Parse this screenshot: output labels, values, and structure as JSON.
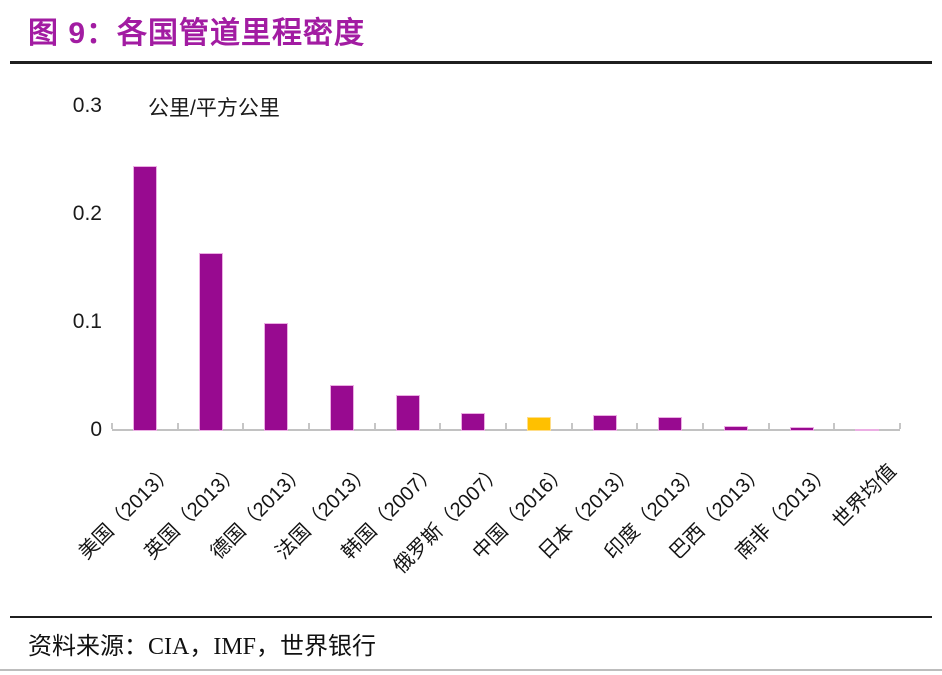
{
  "figure": {
    "title": "图 9：各国管道里程密度",
    "source": "资料来源：CIA，IMF，世界银行"
  },
  "chart_data": {
    "type": "bar",
    "title": "图 9：各国管道里程密度",
    "unit_label": "公里/平方公里",
    "categories": [
      "美国（2013）",
      "英国（2013）",
      "德国（2013）",
      "法国（2013）",
      "韩国（2007）",
      "俄罗斯（2007）",
      "中国（2016）",
      "日本（2013）",
      "印度（2013）",
      "巴西（2013）",
      "南非（2013）",
      "世界均值"
    ],
    "values": [
      0.245,
      0.165,
      0.1,
      0.043,
      0.033,
      0.017,
      0.013,
      0.015,
      0.013,
      0.005,
      0.004,
      0.002
    ],
    "ylim": [
      0,
      0.3
    ],
    "yticks": [
      0,
      0.1,
      0.2,
      0.3
    ],
    "grid": false,
    "legend": "none",
    "xlabel": "",
    "ylabel": "公里/平方公里",
    "highlight_index": 6
  },
  "colors": {
    "title": "#A21CA2",
    "bar_default": "#980A90",
    "bar_border_default": "#EBAEE3",
    "bar_highlight": "#FFC000",
    "bar_border_highlight": "#FFDE8A",
    "axis_line": "#C2C2C2",
    "tick_mark": "#C6C6C6",
    "rule_dark": "#1F1F1F",
    "rule_light": "#BDBDBD",
    "text": "#1A1A1A"
  }
}
